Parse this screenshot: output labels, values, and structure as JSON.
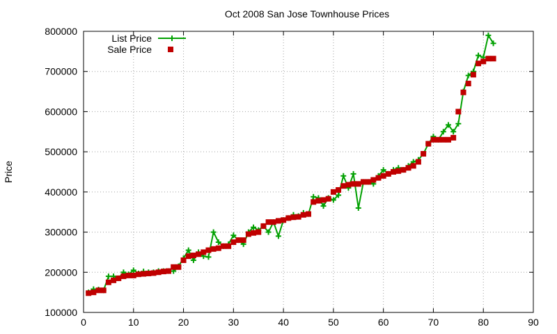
{
  "chart_data": {
    "type": "line",
    "title": "Oct 2008 San Jose Townhouse Prices",
    "xlabel": "",
    "ylabel": "Price",
    "xlim": [
      0,
      90
    ],
    "ylim": [
      100000,
      800000
    ],
    "x_ticks": [
      0,
      10,
      20,
      30,
      40,
      50,
      60,
      70,
      80,
      90
    ],
    "y_ticks": [
      100000,
      200000,
      300000,
      400000,
      500000,
      600000,
      700000,
      800000
    ],
    "x_tick_labels": [
      "0",
      "10",
      "20",
      "30",
      "40",
      "50",
      "60",
      "70",
      "80",
      "90"
    ],
    "y_tick_labels": [
      "100000",
      "200000",
      "300000",
      "400000",
      "500000",
      "600000",
      "700000",
      "800000"
    ],
    "grid": true,
    "legend_position": "top-left",
    "series": [
      {
        "name": "List Price",
        "style": "line-plus",
        "color": "#00a000",
        "x": [
          1,
          2,
          3,
          4,
          5,
          6,
          7,
          8,
          9,
          10,
          11,
          12,
          13,
          14,
          15,
          16,
          17,
          18,
          19,
          20,
          21,
          22,
          23,
          24,
          25,
          26,
          27,
          28,
          29,
          30,
          31,
          32,
          33,
          34,
          35,
          36,
          37,
          38,
          39,
          40,
          41,
          42,
          43,
          44,
          45,
          46,
          47,
          48,
          49,
          50,
          51,
          52,
          53,
          54,
          55,
          56,
          57,
          58,
          59,
          60,
          61,
          62,
          63,
          64,
          65,
          66,
          67,
          68,
          69,
          70,
          71,
          72,
          73,
          74,
          75,
          76,
          77,
          78,
          79,
          80,
          81,
          82
        ],
        "y": [
          150000,
          158000,
          157000,
          155000,
          190000,
          190000,
          185000,
          200000,
          195000,
          205000,
          197000,
          202000,
          200000,
          200000,
          203000,
          203000,
          203000,
          203000,
          215000,
          235000,
          255000,
          230000,
          250000,
          240000,
          238000,
          300000,
          275000,
          265000,
          270000,
          292000,
          280000,
          270000,
          300000,
          312000,
          305000,
          315000,
          300000,
          325000,
          290000,
          330000,
          335000,
          343000,
          340000,
          348000,
          345000,
          388000,
          385000,
          365000,
          385000,
          380000,
          392000,
          440000,
          410000,
          445000,
          360000,
          425000,
          425000,
          420000,
          440000,
          455000,
          445000,
          455000,
          460000,
          455000,
          465000,
          475000,
          480000,
          495000,
          520000,
          538000,
          530000,
          550000,
          567000,
          550000,
          570000,
          650000,
          690000,
          700000,
          740000,
          735000,
          790000,
          770000
        ]
      },
      {
        "name": "Sale Price",
        "style": "square-points",
        "color": "#c00000",
        "x": [
          1,
          2,
          3,
          4,
          5,
          6,
          7,
          8,
          9,
          10,
          11,
          12,
          13,
          14,
          15,
          16,
          17,
          18,
          19,
          20,
          21,
          22,
          23,
          24,
          25,
          26,
          27,
          28,
          29,
          30,
          31,
          32,
          33,
          34,
          35,
          36,
          37,
          38,
          39,
          40,
          41,
          42,
          43,
          44,
          45,
          46,
          47,
          48,
          49,
          50,
          51,
          52,
          53,
          54,
          55,
          56,
          57,
          58,
          59,
          60,
          61,
          62,
          63,
          64,
          65,
          66,
          67,
          68,
          69,
          70,
          71,
          72,
          73,
          74,
          75,
          76,
          77,
          78,
          79,
          80,
          81,
          82
        ],
        "y": [
          148000,
          150000,
          155000,
          155000,
          175000,
          180000,
          185000,
          190000,
          192000,
          192000,
          195000,
          196000,
          197000,
          198000,
          200000,
          202000,
          203000,
          213000,
          213000,
          230000,
          240000,
          242000,
          245000,
          250000,
          255000,
          258000,
          260000,
          265000,
          265000,
          275000,
          280000,
          280000,
          295000,
          298000,
          300000,
          315000,
          325000,
          325000,
          328000,
          330000,
          335000,
          337000,
          338000,
          343000,
          345000,
          375000,
          378000,
          380000,
          383000,
          400000,
          405000,
          415000,
          418000,
          420000,
          420000,
          425000,
          425000,
          430000,
          435000,
          440000,
          445000,
          450000,
          452000,
          455000,
          460000,
          465000,
          475000,
          495000,
          520000,
          530000,
          530000,
          530000,
          530000,
          535000,
          600000,
          648000,
          670000,
          692000,
          720000,
          725000,
          732000,
          732000
        ]
      }
    ]
  }
}
